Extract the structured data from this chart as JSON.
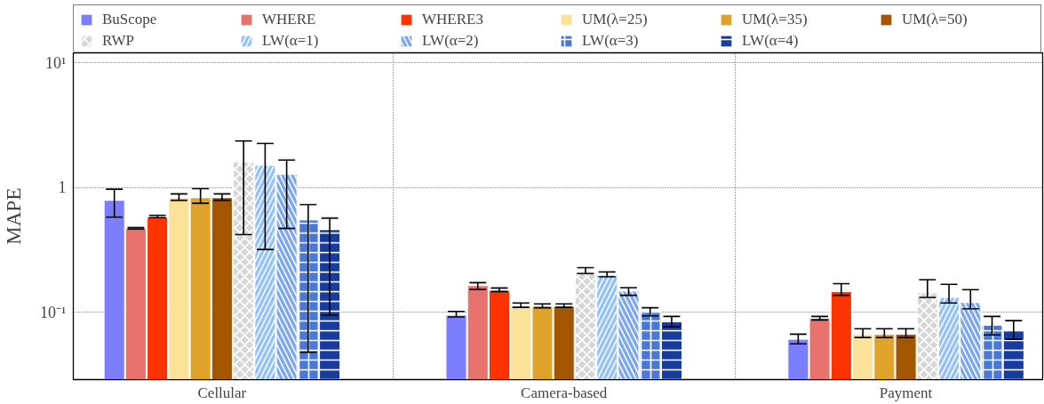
{
  "chart_data": {
    "type": "bar",
    "ylabel": "MAPE",
    "categories": [
      "Cellular",
      "Camera-based",
      "Payment"
    ],
    "log": true,
    "ylim": [
      0.029,
      12
    ],
    "yticks": [
      {
        "value": 0.1,
        "label": "10⁻¹"
      },
      1,
      {
        "value": 10,
        "label": "10¹"
      }
    ],
    "grid": true,
    "legend": "top",
    "series": [
      {
        "name": "BuScope",
        "color": "#7b7fff",
        "values": [
          0.79,
          0.095,
          0.061
        ],
        "errors": [
          [
            0.58,
            0.97
          ],
          [
            0.092,
            0.102
          ],
          [
            0.056,
            0.067
          ]
        ]
      },
      {
        "name": "WHERE",
        "color": "#e8736e",
        "values": [
          0.47,
          0.164,
          0.09
        ],
        "errors": [
          [
            0.465,
            0.478
          ],
          [
            0.153,
            0.173
          ],
          [
            0.087,
            0.093
          ]
        ]
      },
      {
        "name": "WHERE3",
        "color": "#ff3300",
        "values": [
          0.58,
          0.15,
          0.147
        ],
        "errors": [
          [
            0.575,
            0.6
          ],
          [
            0.147,
            0.157
          ],
          [
            0.137,
            0.17
          ]
        ]
      },
      {
        "name": "UM(λ=25)",
        "color": "#fce198",
        "values": [
          0.83,
          0.113,
          0.067
        ],
        "errors": [
          [
            0.79,
            0.89
          ],
          [
            0.11,
            0.119
          ],
          [
            0.063,
            0.074
          ]
        ]
      },
      {
        "name": "UM(λ=35)",
        "color": "#dfa22b",
        "values": [
          0.83,
          0.112,
          0.067
        ],
        "errors": [
          [
            0.75,
            0.98
          ],
          [
            0.109,
            0.117
          ],
          [
            0.063,
            0.074
          ]
        ]
      },
      {
        "name": "UM(λ=50)",
        "color": "#a35500",
        "values": [
          0.83,
          0.112,
          0.067
        ],
        "errors": [
          [
            0.79,
            0.89
          ],
          [
            0.11,
            0.117
          ],
          [
            0.063,
            0.074
          ]
        ]
      },
      {
        "name": "RWP",
        "color": "#d6d6d6",
        "values": [
          1.61,
          0.21,
          0.144
        ],
        "errors": [
          [
            0.42,
            2.36
          ],
          [
            0.205,
            0.228
          ],
          [
            0.132,
            0.183
          ]
        ]
      },
      {
        "name": "LW(α=1)",
        "color": "#92c1fc",
        "values": [
          1.51,
          0.2,
          0.132
        ],
        "errors": [
          [
            0.32,
            2.26
          ],
          [
            0.193,
            0.211
          ],
          [
            0.119,
            0.168
          ]
        ]
      },
      {
        "name": "LW(α=2)",
        "color": "#7ba6f0",
        "values": [
          1.28,
          0.148,
          0.12
        ],
        "errors": [
          [
            0.47,
            1.66
          ],
          [
            0.137,
            0.158
          ],
          [
            0.107,
            0.152
          ]
        ]
      },
      {
        "name": "LW(α=3)",
        "color": "#4a78d6",
        "values": [
          0.55,
          0.1,
          0.079
        ],
        "errors": [
          [
            0.048,
            0.73
          ],
          [
            0.094,
            0.109
          ],
          [
            0.066,
            0.093
          ]
        ]
      },
      {
        "name": "LW(α=4)",
        "color": "#173b9f",
        "values": [
          0.46,
          0.084,
          0.072
        ],
        "errors": [
          [
            0.095,
            0.57
          ],
          [
            0.077,
            0.093
          ],
          [
            0.061,
            0.086
          ]
        ]
      }
    ]
  }
}
